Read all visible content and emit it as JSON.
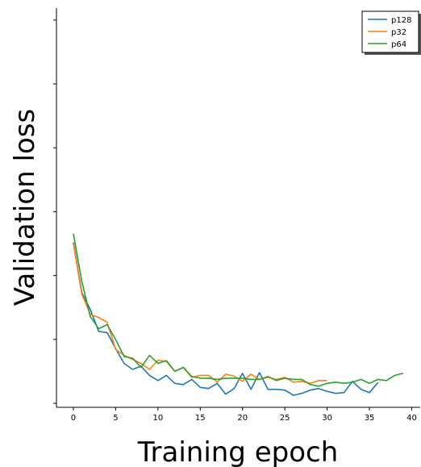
{
  "chart_data": {
    "type": "line",
    "title": "",
    "xlabel": "Training epoch",
    "ylabel": "Validation loss",
    "xlim": [
      -2,
      41
    ],
    "ylim": [
      0.0,
      1.0
    ],
    "x_ticks": [
      0,
      5,
      10,
      15,
      20,
      25,
      30,
      35,
      40
    ],
    "y_ticks": [
      0.01,
      0.17,
      0.33,
      0.49,
      0.65,
      0.81,
      0.97
    ],
    "y_tick_labels_visible": false,
    "grid": false,
    "legend_position": "top-right",
    "series": [
      {
        "name": "p128",
        "color": "#1f77b4",
        "x": [
          0,
          1,
          2,
          3,
          4,
          5,
          6,
          7,
          8,
          9,
          10,
          11,
          12,
          13,
          14,
          15,
          16,
          17,
          18,
          19,
          20,
          21,
          22,
          23,
          24,
          25,
          26,
          27,
          28,
          29,
          30,
          31,
          32,
          33,
          34,
          35,
          36
        ],
        "y": [
          0.413,
          0.287,
          0.245,
          0.19,
          0.187,
          0.147,
          0.11,
          0.095,
          0.103,
          0.08,
          0.067,
          0.08,
          0.06,
          0.057,
          0.07,
          0.05,
          0.047,
          0.06,
          0.033,
          0.047,
          0.085,
          0.045,
          0.087,
          0.045,
          0.045,
          0.043,
          0.03,
          0.035,
          0.043,
          0.047,
          0.04,
          0.035,
          0.037,
          0.065,
          0.045,
          0.037,
          0.062
        ]
      },
      {
        "name": "p32",
        "color": "#ff7f0e",
        "x": [
          0,
          1,
          2,
          3,
          4,
          5,
          6,
          7,
          8,
          9,
          10,
          11,
          12,
          13,
          14,
          15,
          16,
          17,
          18,
          19,
          20,
          21,
          22,
          23,
          24,
          25,
          26,
          27,
          28,
          29,
          30
        ],
        "y": [
          0.41,
          0.283,
          0.233,
          0.225,
          0.213,
          0.145,
          0.13,
          0.12,
          0.11,
          0.095,
          0.118,
          0.115,
          0.09,
          0.1,
          0.075,
          0.08,
          0.08,
          0.063,
          0.083,
          0.078,
          0.065,
          0.083,
          0.07,
          0.075,
          0.07,
          0.075,
          0.063,
          0.065,
          0.06,
          0.067,
          0.067
        ]
      },
      {
        "name": "p64",
        "color": "#2ca02c",
        "x": [
          0,
          1,
          2,
          3,
          4,
          5,
          6,
          7,
          8,
          9,
          10,
          11,
          12,
          13,
          14,
          15,
          16,
          17,
          18,
          19,
          20,
          21,
          22,
          23,
          24,
          25,
          26,
          27,
          28,
          29,
          30,
          31,
          32,
          33,
          34,
          35,
          36,
          37,
          38,
          39
        ],
        "y": [
          0.435,
          0.315,
          0.227,
          0.197,
          0.207,
          0.17,
          0.127,
          0.123,
          0.1,
          0.13,
          0.11,
          0.117,
          0.09,
          0.1,
          0.077,
          0.073,
          0.073,
          0.07,
          0.073,
          0.073,
          0.073,
          0.07,
          0.07,
          0.077,
          0.067,
          0.073,
          0.07,
          0.07,
          0.057,
          0.053,
          0.06,
          0.063,
          0.06,
          0.063,
          0.07,
          0.06,
          0.07,
          0.067,
          0.08,
          0.085
        ]
      }
    ]
  }
}
